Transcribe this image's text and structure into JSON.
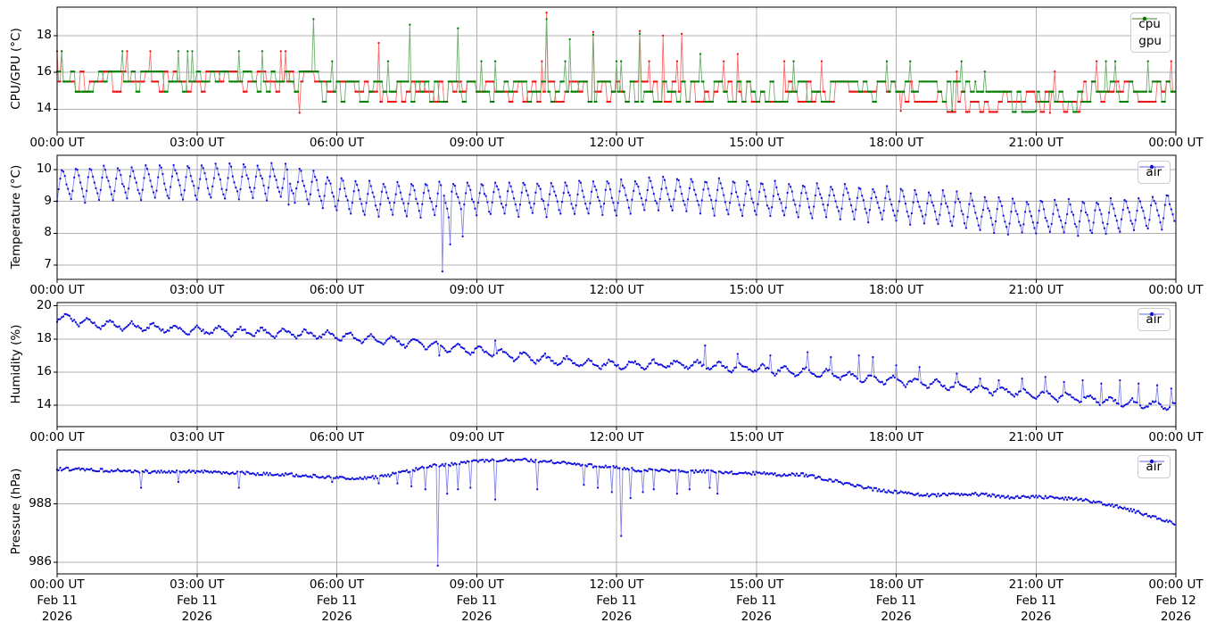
{
  "figure": {
    "background": "#ffffff",
    "grid_color": "#b0b0b0",
    "frame_color": "#000000"
  },
  "x_axis": {
    "tick_hours": [
      0,
      3,
      6,
      9,
      12,
      15,
      18,
      21,
      24
    ],
    "tick_labels": [
      "00:00 UT",
      "03:00 UT",
      "06:00 UT",
      "09:00 UT",
      "12:00 UT",
      "15:00 UT",
      "18:00 UT",
      "21:00 UT",
      "00:00 UT"
    ],
    "date_line1": [
      "Feb 11",
      "Feb 11",
      "Feb 11",
      "Feb 11",
      "Feb 11",
      "Feb 11",
      "Feb 11",
      "Feb 11",
      "Feb 12"
    ],
    "date_line2": [
      "2026",
      "2026",
      "2026",
      "2026",
      "2026",
      "2026",
      "2026",
      "2026",
      "2026"
    ]
  },
  "chart_data": [
    {
      "type": "line",
      "name": "cpu-gpu",
      "ylabel": "CPU/GPU (°C)",
      "yticks": [
        14,
        16,
        18
      ],
      "ylim": [
        12.75,
        19.55
      ],
      "xlim_hours": [
        0,
        24
      ],
      "grid": true,
      "legend": {
        "position": "top-right",
        "entries": [
          "cpu",
          "gpu"
        ]
      },
      "series": [
        {
          "name": "cpu",
          "marker_color": "#ee1111",
          "line_color": "#ff6a6a",
          "seed": 7,
          "model": {
            "kind": "steps",
            "step_min": 2,
            "block_min": 6,
            "levels_rel": [
              -0.5,
              0,
              0.55
            ],
            "weights": [
              0.3,
              0.4,
              0.3
            ],
            "peak_rel": 1.6,
            "peak_prob": 0.08,
            "quant": 0.55,
            "quant_base": 13.85
          },
          "trend": [
            [
              0,
              15.45
            ],
            [
              5.3,
              15.45
            ],
            [
              5.7,
              15.0
            ],
            [
              16,
              14.95
            ],
            [
              19,
              14.6
            ],
            [
              21.8,
              14.5
            ],
            [
              22.4,
              14.95
            ],
            [
              24,
              14.95
            ]
          ],
          "spikes": [
            [
              5.2,
              13.8
            ],
            [
              6.9,
              17.6
            ],
            [
              10.5,
              19.25
            ],
            [
              11.5,
              18.2
            ],
            [
              12.5,
              18.25
            ],
            [
              13.0,
              18.0
            ],
            [
              13.4,
              18.1
            ],
            [
              14.6,
              17.0
            ],
            [
              18.1,
              13.9
            ],
            [
              21.3,
              13.8
            ]
          ]
        },
        {
          "name": "gpu",
          "marker_color": "#008000",
          "line_color": "#6fae6f",
          "seed": 40,
          "model": {
            "kind": "steps",
            "step_min": 2,
            "block_min": 6,
            "levels_rel": [
              -0.6,
              0,
              0.5
            ],
            "weights": [
              0.22,
              0.38,
              0.4
            ],
            "peak_rel": 1.6,
            "peak_prob": 0.08,
            "quant": 0.55,
            "quant_base": 13.85
          },
          "trend": [
            [
              0,
              15.7
            ],
            [
              5.3,
              15.7
            ],
            [
              5.7,
              15.15
            ],
            [
              16,
              15.15
            ],
            [
              19,
              14.75
            ],
            [
              21.8,
              14.65
            ],
            [
              22.4,
              15.15
            ],
            [
              24,
              15.15
            ]
          ],
          "spikes": [
            [
              5.5,
              18.9
            ],
            [
              7.55,
              18.6
            ],
            [
              8.6,
              18.4
            ],
            [
              10.5,
              18.9
            ],
            [
              11.0,
              17.8
            ],
            [
              11.5,
              18.05
            ],
            [
              12.5,
              18.1
            ],
            [
              13.8,
              17.0
            ],
            [
              19.2,
              13.9
            ],
            [
              21.0,
              13.9
            ]
          ]
        }
      ]
    },
    {
      "type": "line",
      "name": "temperature",
      "ylabel": "Temperature (°C)",
      "yticks": [
        7,
        8,
        9,
        10
      ],
      "ylim": [
        6.55,
        10.45
      ],
      "xlim_hours": [
        0,
        24
      ],
      "grid": true,
      "legend": {
        "position": "top-right",
        "entries": [
          "air"
        ]
      },
      "series": [
        {
          "name": "air",
          "marker_color": "#1111dd",
          "line_color": "#8585ea",
          "seed": 33,
          "model": {
            "kind": "saw",
            "step_min": 2,
            "period_min": 18,
            "amplitude": 0.55,
            "rise_frac": 0.35,
            "noise": 0.07
          },
          "trend": [
            [
              0,
              9.55
            ],
            [
              2,
              9.6
            ],
            [
              4.8,
              9.65
            ],
            [
              6.5,
              9.1
            ],
            [
              9,
              9.1
            ],
            [
              12,
              9.15
            ],
            [
              13,
              9.25
            ],
            [
              15,
              9.1
            ],
            [
              17,
              9.0
            ],
            [
              19,
              8.8
            ],
            [
              20.5,
              8.55
            ],
            [
              22,
              8.5
            ],
            [
              23,
              8.6
            ],
            [
              24,
              8.75
            ]
          ],
          "spikes": [
            [
              4.95,
              8.9
            ],
            [
              8.25,
              6.8
            ],
            [
              8.45,
              7.65
            ],
            [
              8.7,
              7.9
            ]
          ]
        }
      ]
    },
    {
      "type": "line",
      "name": "humidity",
      "ylabel": "Humidity (%)",
      "yticks": [
        14,
        16,
        18,
        20
      ],
      "ylim": [
        12.7,
        20.2
      ],
      "xlim_hours": [
        0,
        24
      ],
      "grid": true,
      "legend": {
        "position": "top-right",
        "entries": [
          "air"
        ]
      },
      "series": [
        {
          "name": "air",
          "marker_color": "#1111dd",
          "line_color": "#8585ea",
          "seed": 54,
          "model": {
            "kind": "saw",
            "step_min": 2,
            "period_min": 28,
            "amplitude": 0.27,
            "rise_frac": 0.4,
            "noise": 0.09
          },
          "trend": [
            [
              0,
              19.35
            ],
            [
              0.7,
              18.95
            ],
            [
              2,
              18.7
            ],
            [
              3,
              18.5
            ],
            [
              4.5,
              18.4
            ],
            [
              6,
              18.2
            ],
            [
              6.7,
              18.0
            ],
            [
              7.5,
              17.8
            ],
            [
              8.3,
              17.5
            ],
            [
              9,
              17.3
            ],
            [
              9.8,
              17.0
            ],
            [
              10.7,
              16.7
            ],
            [
              11.5,
              16.5
            ],
            [
              12,
              16.45
            ],
            [
              13.5,
              16.45
            ],
            [
              14.5,
              16.3
            ],
            [
              15.5,
              16.1
            ],
            [
              16.5,
              15.9
            ],
            [
              17.5,
              15.6
            ],
            [
              18.5,
              15.35
            ],
            [
              19.5,
              15.1
            ],
            [
              20.5,
              14.8
            ],
            [
              21.5,
              14.55
            ],
            [
              22.5,
              14.25
            ],
            [
              23.2,
              14.05
            ],
            [
              24,
              13.95
            ]
          ],
          "spikes": [
            [
              8.2,
              17.0
            ],
            [
              9.4,
              17.9
            ],
            [
              13.9,
              17.6
            ],
            [
              14.6,
              17.1
            ],
            [
              15.3,
              17.0
            ],
            [
              16.1,
              17.2
            ],
            [
              16.6,
              16.9
            ],
            [
              17.2,
              17.0
            ],
            [
              17.5,
              16.9
            ],
            [
              18.0,
              16.4
            ],
            [
              18.5,
              16.3
            ],
            [
              19.3,
              15.9
            ],
            [
              19.8,
              15.6
            ],
            [
              20.2,
              15.5
            ],
            [
              20.7,
              15.6
            ],
            [
              21.2,
              15.7
            ],
            [
              21.6,
              15.4
            ],
            [
              22.0,
              15.5
            ],
            [
              22.4,
              15.3
            ],
            [
              22.8,
              15.5
            ],
            [
              23.2,
              15.3
            ],
            [
              23.6,
              15.2
            ],
            [
              23.9,
              15.0
            ]
          ]
        }
      ]
    },
    {
      "type": "line",
      "name": "pressure",
      "ylabel": "Pressure (hPa)",
      "yticks": [
        986,
        988
      ],
      "ylim": [
        985.6,
        989.85
      ],
      "xlim_hours": [
        0,
        24
      ],
      "grid": true,
      "legend": {
        "position": "top-right",
        "entries": [
          "air"
        ]
      },
      "show_dates": true,
      "series": [
        {
          "name": "air",
          "marker_color": "#1111dd",
          "line_color": "#8585ea",
          "seed": 75,
          "model": {
            "kind": "noise",
            "step_min": 2,
            "noise": 0.055
          },
          "trend": [
            [
              0,
              989.2
            ],
            [
              1,
              989.15
            ],
            [
              2,
              989.1
            ],
            [
              3,
              989.1
            ],
            [
              4,
              989.05
            ],
            [
              5,
              989.0
            ],
            [
              5.5,
              988.95
            ],
            [
              6,
              988.9
            ],
            [
              6.5,
              988.85
            ],
            [
              7,
              988.95
            ],
            [
              7.5,
              989.1
            ],
            [
              8,
              989.3
            ],
            [
              8.5,
              989.35
            ],
            [
              9,
              989.45
            ],
            [
              9.5,
              989.5
            ],
            [
              10,
              989.5
            ],
            [
              10.5,
              989.45
            ],
            [
              11,
              989.4
            ],
            [
              11.5,
              989.3
            ],
            [
              12,
              989.25
            ],
            [
              12.5,
              989.15
            ],
            [
              13,
              989.15
            ],
            [
              13.5,
              989.1
            ],
            [
              14,
              989.1
            ],
            [
              14.5,
              989.05
            ],
            [
              15,
              989.05
            ],
            [
              15.5,
              989.0
            ],
            [
              16,
              989.0
            ],
            [
              16.5,
              988.85
            ],
            [
              17,
              988.65
            ],
            [
              17.5,
              988.5
            ],
            [
              18,
              988.4
            ],
            [
              18.5,
              988.3
            ],
            [
              19,
              988.3
            ],
            [
              19.5,
              988.35
            ],
            [
              20,
              988.3
            ],
            [
              20.5,
              988.2
            ],
            [
              21,
              988.25
            ],
            [
              21.5,
              988.2
            ],
            [
              22,
              988.15
            ],
            [
              22.5,
              988.0
            ],
            [
              23,
              987.8
            ],
            [
              23.5,
              987.55
            ],
            [
              24,
              987.3
            ]
          ],
          "spikes": [
            [
              1.8,
              988.55
            ],
            [
              2.6,
              988.75
            ],
            [
              3.9,
              988.55
            ],
            [
              5.9,
              988.75
            ],
            [
              6.9,
              988.7
            ],
            [
              7.3,
              988.7
            ],
            [
              7.6,
              988.6
            ],
            [
              7.9,
              988.5
            ],
            [
              8.18,
              985.88
            ],
            [
              8.35,
              988.35
            ],
            [
              8.6,
              988.5
            ],
            [
              8.85,
              988.55
            ],
            [
              9.4,
              988.15
            ],
            [
              10.3,
              988.5
            ],
            [
              11.3,
              988.65
            ],
            [
              11.6,
              988.55
            ],
            [
              11.9,
              988.4
            ],
            [
              12.1,
              986.9
            ],
            [
              12.3,
              988.2
            ],
            [
              12.55,
              988.4
            ],
            [
              12.8,
              988.5
            ],
            [
              13.3,
              988.35
            ],
            [
              13.55,
              988.5
            ],
            [
              14.0,
              988.55
            ],
            [
              14.15,
              988.35
            ]
          ]
        }
      ]
    }
  ]
}
